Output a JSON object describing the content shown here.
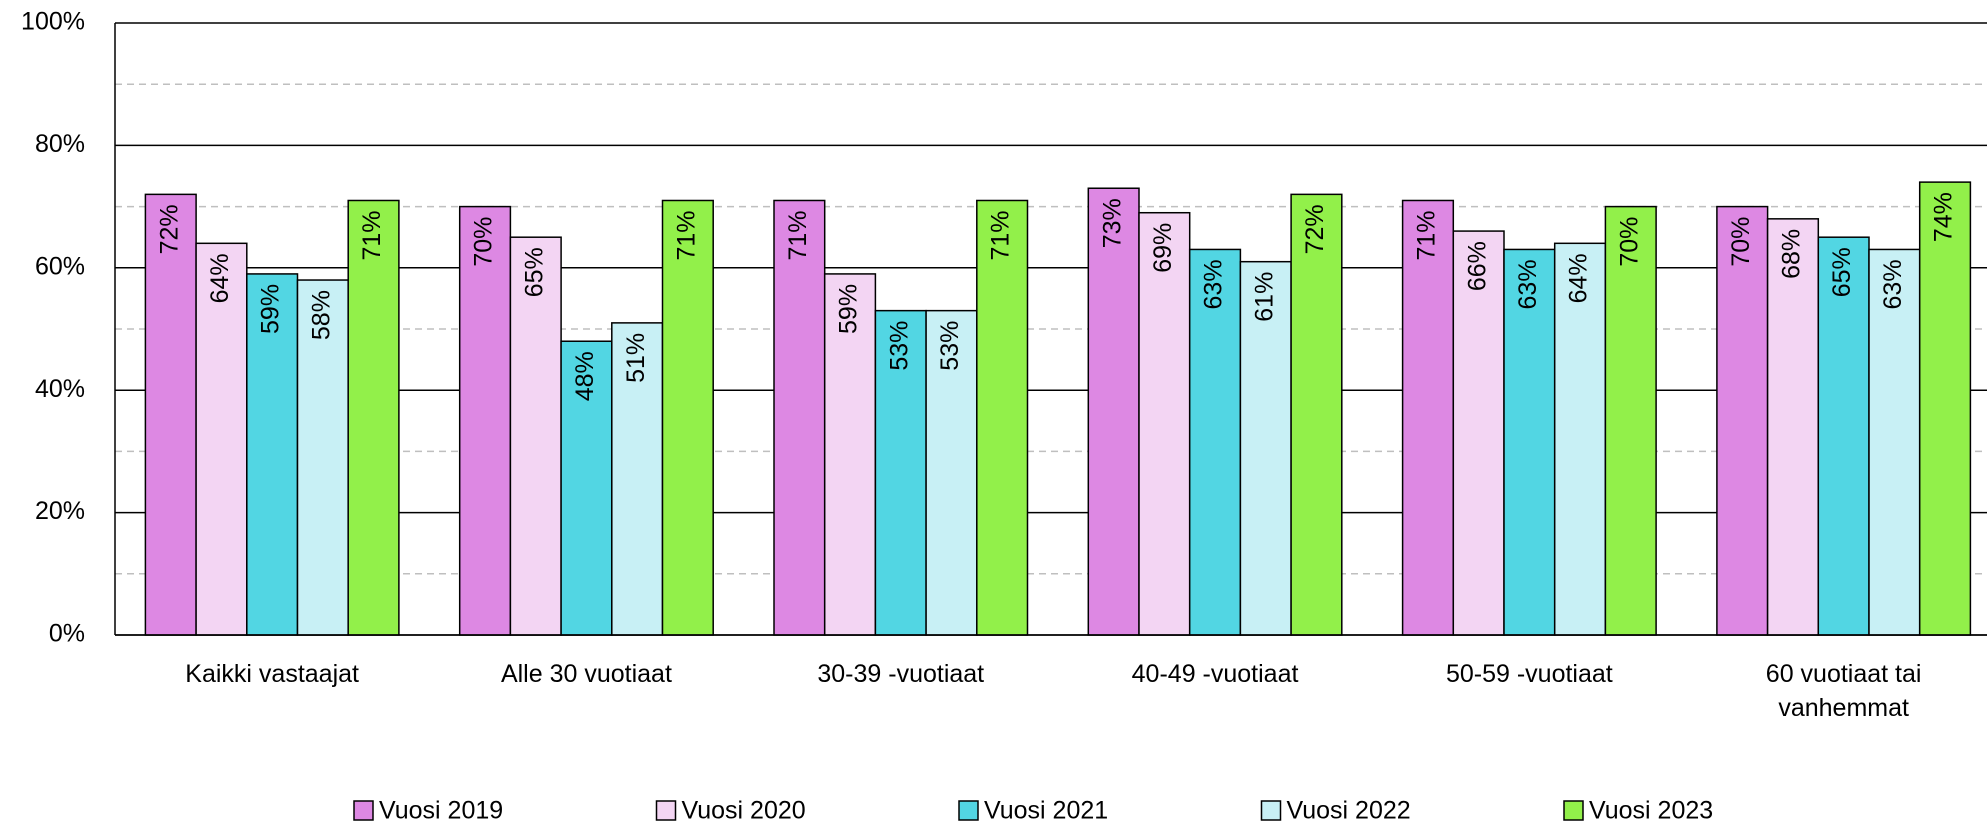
{
  "chart_data": {
    "type": "bar",
    "categories": [
      "Kaikki vastaajat",
      "Alle 30 vuotiaat",
      "30-39 -vuotiaat",
      "40-49 -vuotiaat",
      "50-59 -vuotiaat",
      "60 vuotiaat tai vanhemmat"
    ],
    "series": [
      {
        "name": "Vuosi 2019",
        "color": "#dd88e3",
        "values": [
          72,
          70,
          71,
          73,
          71,
          70
        ],
        "value_labels": [
          "72%",
          "70%",
          "71%",
          "73%",
          "71%",
          "70%"
        ]
      },
      {
        "name": "Vuosi 2020",
        "color": "#f3d5f3",
        "values": [
          64,
          65,
          59,
          69,
          66,
          68
        ],
        "value_labels": [
          "64%",
          "65%",
          "59%",
          "69%",
          "66%",
          "68%"
        ]
      },
      {
        "name": "Vuosi 2021",
        "color": "#52d6e3",
        "values": [
          59,
          48,
          53,
          63,
          63,
          65
        ],
        "value_labels": [
          "59%",
          "48%",
          "53%",
          "63%",
          "63%",
          "65%"
        ]
      },
      {
        "name": "Vuosi 2022",
        "color": "#c8f0f5",
        "values": [
          58,
          51,
          53,
          61,
          64,
          63
        ],
        "value_labels": [
          "58%",
          "51%",
          "53%",
          "61%",
          "64%",
          "63%"
        ]
      },
      {
        "name": "Vuosi 2023",
        "color": "#92f04a",
        "values": [
          71,
          71,
          71,
          72,
          70,
          74
        ],
        "value_labels": [
          "71%",
          "71%",
          "71%",
          "72%",
          "70%",
          "74%"
        ]
      }
    ],
    "ylim": [
      0,
      100
    ],
    "yticks": [
      {
        "value": 0,
        "label": "0%"
      },
      {
        "value": 20,
        "label": "20%"
      },
      {
        "value": 40,
        "label": "40%"
      },
      {
        "value": 60,
        "label": "60%"
      },
      {
        "value": 80,
        "label": "80%"
      },
      {
        "value": 100,
        "label": "100%"
      }
    ],
    "minor_yticks": [
      10,
      30,
      50,
      70,
      90
    ],
    "grid": true,
    "legend": "bottom"
  }
}
